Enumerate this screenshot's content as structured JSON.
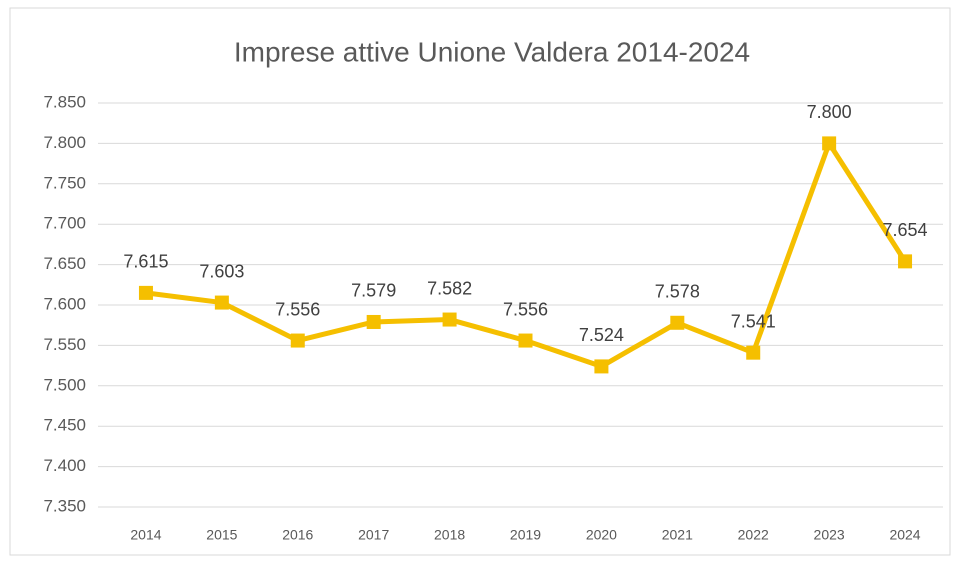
{
  "chart_data": {
    "type": "line",
    "title": "Imprese attive Unione Valdera 2014-2024",
    "categories": [
      "2014",
      "2015",
      "2016",
      "2017",
      "2018",
      "2019",
      "2020",
      "2021",
      "2022",
      "2023",
      "2024"
    ],
    "series": [
      {
        "color": "#f5bf00",
        "values": [
          7615,
          7603,
          7556,
          7579,
          7582,
          7556,
          7524,
          7578,
          7541,
          7800,
          7654
        ],
        "value_labels": [
          "7.615",
          "7.603",
          "7.556",
          "7.579",
          "7.582",
          "7.556",
          "7.524",
          "7.578",
          "7.541",
          "7.800",
          "7.654"
        ]
      }
    ],
    "ylim": [
      7350,
      7850
    ],
    "yticks": [
      {
        "value": 7350,
        "label": "7.350"
      },
      {
        "value": 7400,
        "label": "7.400"
      },
      {
        "value": 7450,
        "label": "7.450"
      },
      {
        "value": 7500,
        "label": "7.500"
      },
      {
        "value": 7550,
        "label": "7.550"
      },
      {
        "value": 7600,
        "label": "7.600"
      },
      {
        "value": 7650,
        "label": "7.650"
      },
      {
        "value": 7700,
        "label": "7.700"
      },
      {
        "value": 7750,
        "label": "7.750"
      },
      {
        "value": 7800,
        "label": "7.800"
      },
      {
        "value": 7850,
        "label": "7.850"
      }
    ],
    "grid": true
  }
}
